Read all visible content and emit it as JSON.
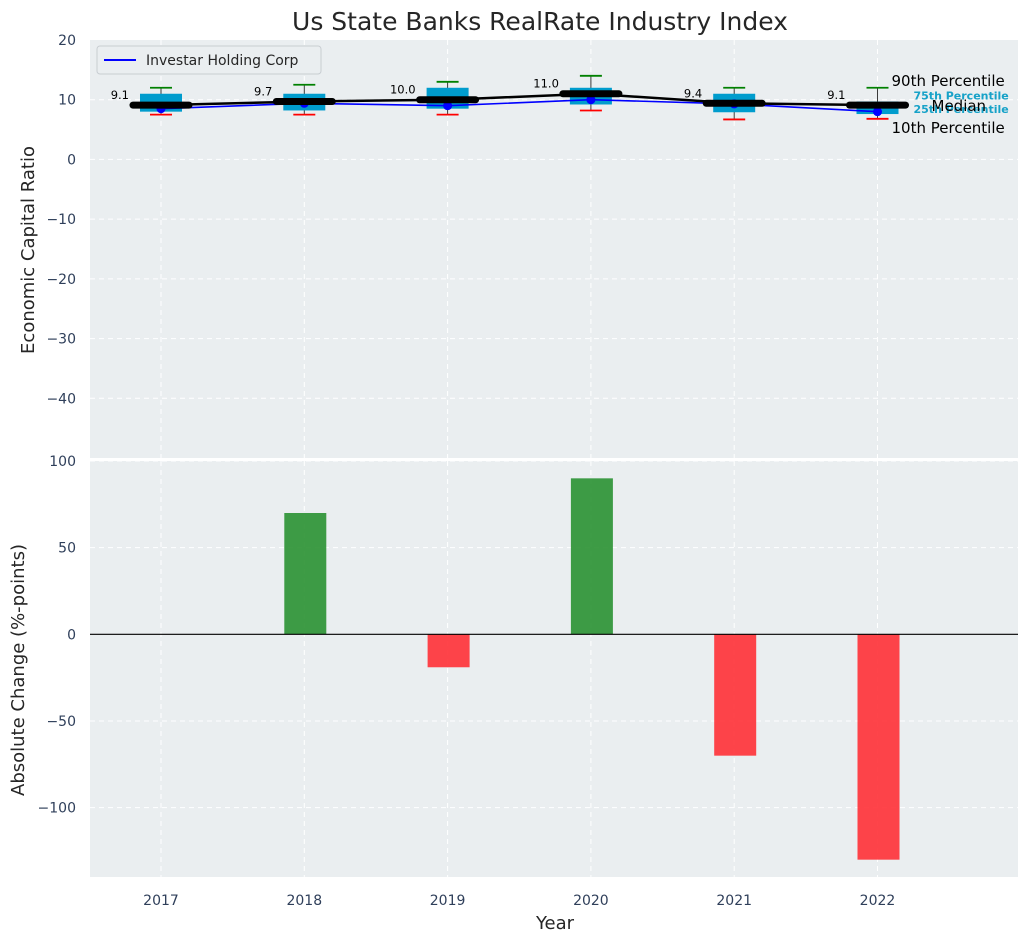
{
  "chart_data": [
    {
      "type": "box",
      "title": "Us State Banks RealRate Industry Index",
      "ylabel": "Economic Capital Ratio",
      "xlabel": "",
      "ylim": [
        -50,
        20
      ],
      "yticks": [
        20,
        10,
        0,
        -10,
        -20,
        -30,
        -40
      ],
      "categories": [
        "2017",
        "2018",
        "2019",
        "2020",
        "2021",
        "2022"
      ],
      "p10": [
        7.5,
        7.5,
        7.5,
        8.2,
        6.7,
        6.8
      ],
      "p25": [
        8.0,
        8.2,
        8.5,
        9.2,
        7.9,
        7.6
      ],
      "median": [
        9.1,
        9.7,
        10.0,
        11.0,
        9.4,
        9.1
      ],
      "p75": [
        11.0,
        11.0,
        12.0,
        12.0,
        11.0,
        9.7
      ],
      "p90": [
        12.0,
        12.5,
        13.0,
        14.0,
        12.0,
        12.0
      ],
      "median_labels": [
        "9.1",
        "9.7",
        "10.0",
        "11.0",
        "9.4",
        "9.1"
      ],
      "series": [
        {
          "name": "Investar Holding Corp",
          "values": [
            8.5,
            9.4,
            9.0,
            10.0,
            9.3,
            8.0
          ],
          "color": "#0000ff"
        }
      ],
      "legend": {
        "entries": [
          "Investar Holding Corp"
        ],
        "location": "top-left"
      },
      "annotations": {
        "p90": "90th Percentile",
        "median": "Median",
        "p75": "75th Percentile",
        "p25": "25th Percentile",
        "p10": "10th Percentile"
      }
    },
    {
      "type": "bar",
      "ylabel": "Absolute Change (%-points)",
      "xlabel": "Year",
      "ylim": [
        -140,
        100
      ],
      "yticks": [
        100,
        50,
        0,
        -50,
        -100
      ],
      "categories": [
        "2017",
        "2018",
        "2019",
        "2020",
        "2021",
        "2022"
      ],
      "values": [
        0,
        70,
        -19,
        90,
        -70,
        -130
      ],
      "positive_color": "#2a9132",
      "negative_color": "#ff3036"
    }
  ],
  "colors": {
    "background": "#eaeef0",
    "grid": "#ffffff",
    "box_fill": "#009ccd",
    "p90_whisker": "#008000",
    "p10_whisker": "#ff0000",
    "median_line": "#000000"
  }
}
